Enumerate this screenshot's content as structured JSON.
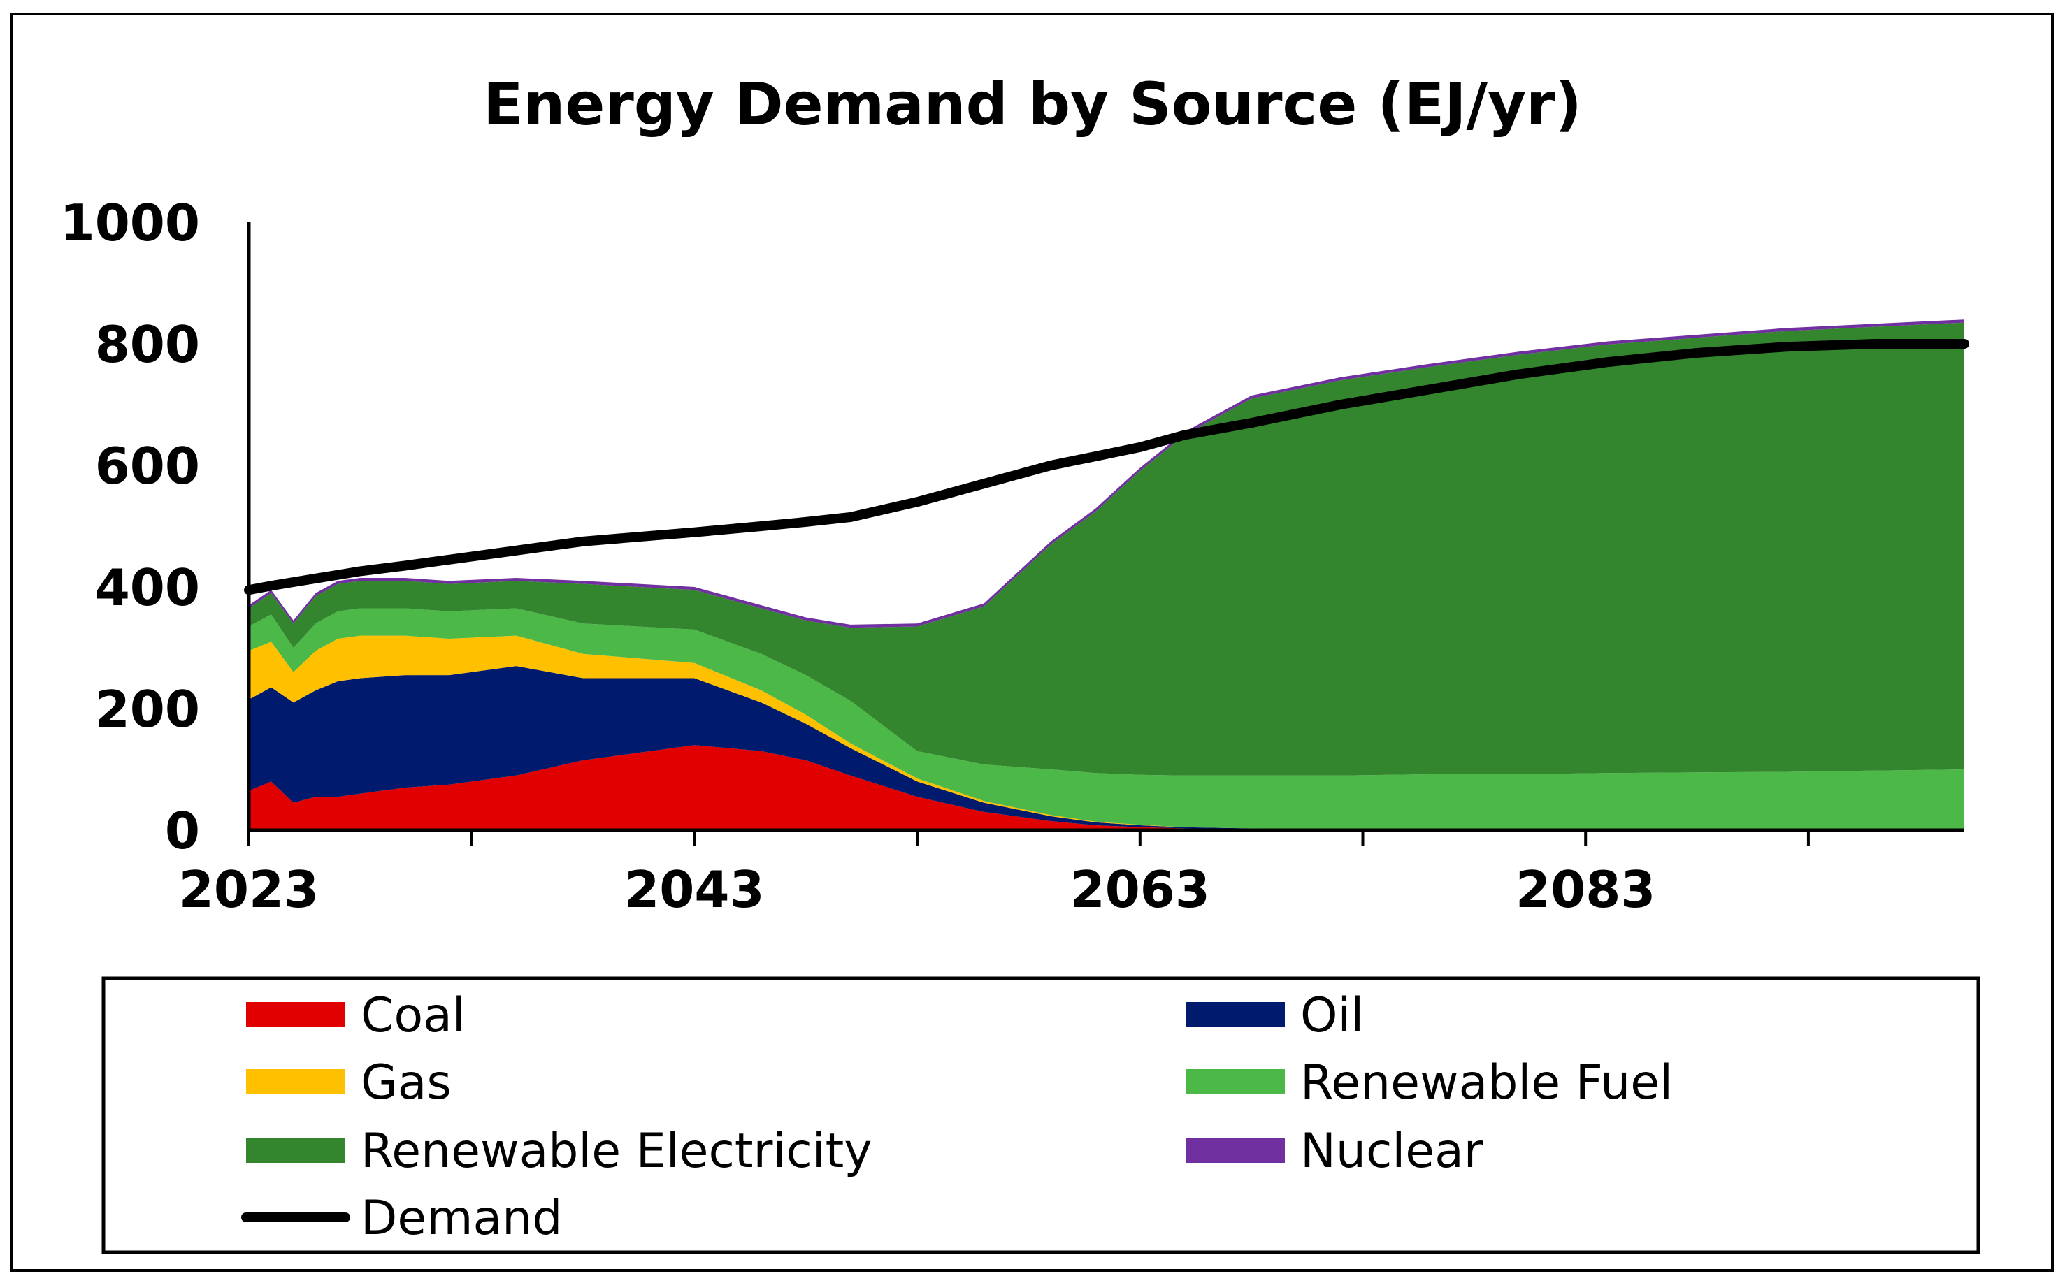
{
  "chart_data": {
    "type": "area",
    "title": "Energy Demand by Source (EJ/yr)",
    "xlabel": "",
    "ylabel": "",
    "ylim": [
      0,
      1000
    ],
    "yticks": [
      "0",
      "200",
      "400",
      "600",
      "800",
      "1000"
    ],
    "xticks": [
      "2023",
      "2043",
      "2063",
      "2083"
    ],
    "xlim": [
      2023,
      2100
    ],
    "stacked": true,
    "x": [
      2023,
      2024,
      2025,
      2026,
      2027,
      2028,
      2030,
      2032,
      2035,
      2038,
      2043,
      2046,
      2048,
      2050,
      2053,
      2056,
      2059,
      2061,
      2063,
      2065,
      2068,
      2072,
      2076,
      2080,
      2084,
      2088,
      2092,
      2096,
      2100
    ],
    "series": [
      {
        "name": "Coal",
        "color": "#e00000",
        "values": [
          65,
          80,
          45,
          55,
          55,
          60,
          70,
          75,
          90,
          115,
          140,
          130,
          115,
          90,
          55,
          30,
          15,
          8,
          5,
          3,
          2,
          1,
          1,
          0,
          0,
          0,
          0,
          0,
          0
        ]
      },
      {
        "name": "Oil",
        "color": "#001a6e",
        "values": [
          150,
          155,
          165,
          175,
          190,
          190,
          185,
          180,
          180,
          135,
          110,
          80,
          60,
          45,
          25,
          15,
          8,
          5,
          3,
          2,
          1,
          1,
          1,
          0,
          0,
          0,
          0,
          0,
          0
        ]
      },
      {
        "name": "Gas",
        "color": "#ffc000",
        "values": [
          80,
          75,
          50,
          65,
          70,
          70,
          65,
          60,
          50,
          40,
          25,
          20,
          15,
          8,
          5,
          3,
          2,
          1,
          1,
          0,
          0,
          0,
          0,
          0,
          0,
          0,
          0,
          0,
          0
        ]
      },
      {
        "name": "Renewable Fuel",
        "color": "#4cb848",
        "values": [
          40,
          45,
          40,
          45,
          45,
          45,
          45,
          45,
          45,
          50,
          55,
          60,
          65,
          70,
          45,
          60,
          75,
          80,
          82,
          85,
          87,
          88,
          90,
          92,
          94,
          95,
          96,
          98,
          100
        ]
      },
      {
        "name": "Renewable Electricity",
        "color": "#33862e",
        "values": [
          30,
          35,
          40,
          45,
          45,
          45,
          45,
          45,
          45,
          65,
          65,
          75,
          90,
          120,
          205,
          260,
          370,
          430,
          500,
          560,
          620,
          650,
          670,
          690,
          705,
          715,
          725,
          730,
          735
        ]
      },
      {
        "name": "Nuclear",
        "color": "#7030a0",
        "values": [
          5,
          5,
          5,
          5,
          5,
          5,
          5,
          5,
          5,
          5,
          5,
          5,
          5,
          5,
          5,
          5,
          5,
          5,
          5,
          5,
          5,
          5,
          5,
          5,
          5,
          5,
          5,
          5,
          5
        ]
      }
    ],
    "line_series": [
      {
        "name": "Demand",
        "color": "#000000",
        "values": [
          395,
          402,
          408,
          414,
          420,
          426,
          435,
          445,
          460,
          475,
          490,
          500,
          507,
          515,
          540,
          570,
          600,
          615,
          630,
          650,
          670,
          700,
          725,
          750,
          770,
          785,
          795,
          800,
          800
        ]
      }
    ],
    "legend": [
      {
        "name": "Coal",
        "kind": "area",
        "color": "#e00000"
      },
      {
        "name": "Oil",
        "kind": "area",
        "color": "#001a6e"
      },
      {
        "name": "Gas",
        "kind": "area",
        "color": "#ffc000"
      },
      {
        "name": "Renewable Fuel",
        "kind": "area",
        "color": "#4cb848"
      },
      {
        "name": "Renewable Electricity",
        "kind": "area",
        "color": "#33862e"
      },
      {
        "name": "Nuclear",
        "kind": "area",
        "color": "#7030a0"
      },
      {
        "name": "Demand",
        "kind": "line",
        "color": "#000000"
      }
    ],
    "legend_position": "bottom",
    "grid": false
  }
}
